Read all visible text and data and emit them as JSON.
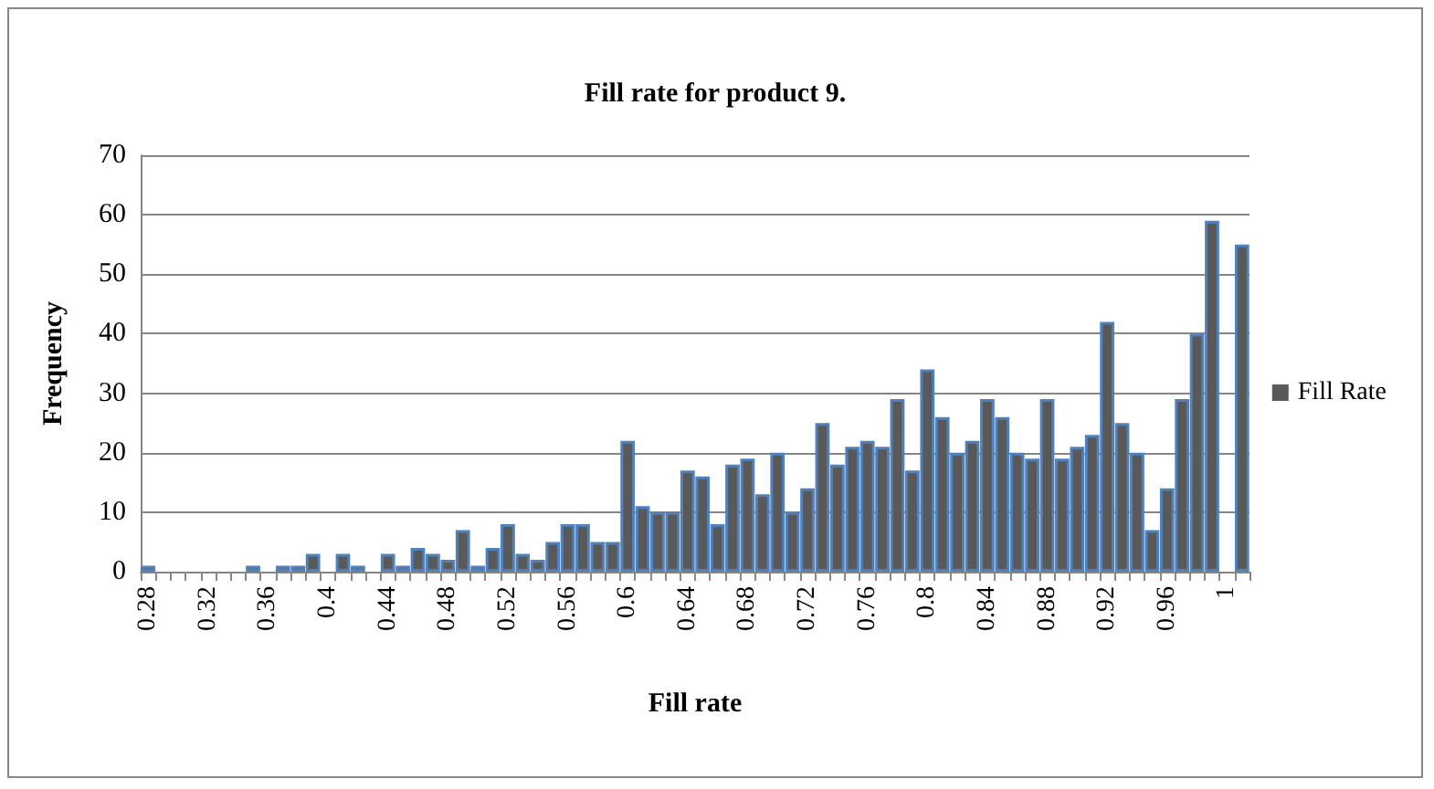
{
  "chart_data": {
    "type": "bar",
    "title": "Fill rate for product 9.",
    "xlabel": "Fill rate",
    "ylabel": "Frequency",
    "categories": [
      "0.28",
      null,
      null,
      null,
      "0.32",
      null,
      null,
      null,
      "0.36",
      null,
      null,
      null,
      "0.4",
      null,
      null,
      null,
      "0.44",
      null,
      null,
      null,
      "0.48",
      null,
      null,
      null,
      "0.52",
      null,
      null,
      null,
      "0.56",
      null,
      null,
      null,
      "0.6",
      null,
      null,
      null,
      "0.64",
      null,
      null,
      null,
      "0.68",
      null,
      null,
      null,
      "0.72",
      null,
      null,
      null,
      "0.76",
      null,
      null,
      null,
      "0.8",
      null,
      null,
      null,
      "0.84",
      null,
      null,
      null,
      "0.88",
      null,
      null,
      null,
      "0.92",
      null,
      null,
      null,
      "0.96",
      null,
      null,
      null,
      "1",
      null
    ],
    "series": [
      {
        "name": "Fill Rate",
        "color": "#595959",
        "values": [
          1,
          0,
          0,
          0,
          0,
          0,
          0,
          1,
          0,
          1,
          1,
          3,
          0,
          3,
          1,
          0,
          3,
          1,
          4,
          3,
          2,
          7,
          1,
          4,
          8,
          3,
          2,
          5,
          8,
          8,
          5,
          5,
          22,
          11,
          10,
          10,
          17,
          16,
          8,
          18,
          19,
          13,
          20,
          10,
          14,
          25,
          18,
          21,
          22,
          21,
          29,
          17,
          34,
          26,
          20,
          22,
          29,
          26,
          20,
          19,
          29,
          19,
          21,
          23,
          42,
          25,
          20,
          7,
          14,
          29,
          40,
          59,
          0,
          55
        ]
      }
    ],
    "ylim": [
      0,
      70
    ],
    "yticks": [
      0,
      10,
      20,
      30,
      40,
      50,
      60,
      70
    ],
    "grid": "y",
    "legend": "right"
  }
}
